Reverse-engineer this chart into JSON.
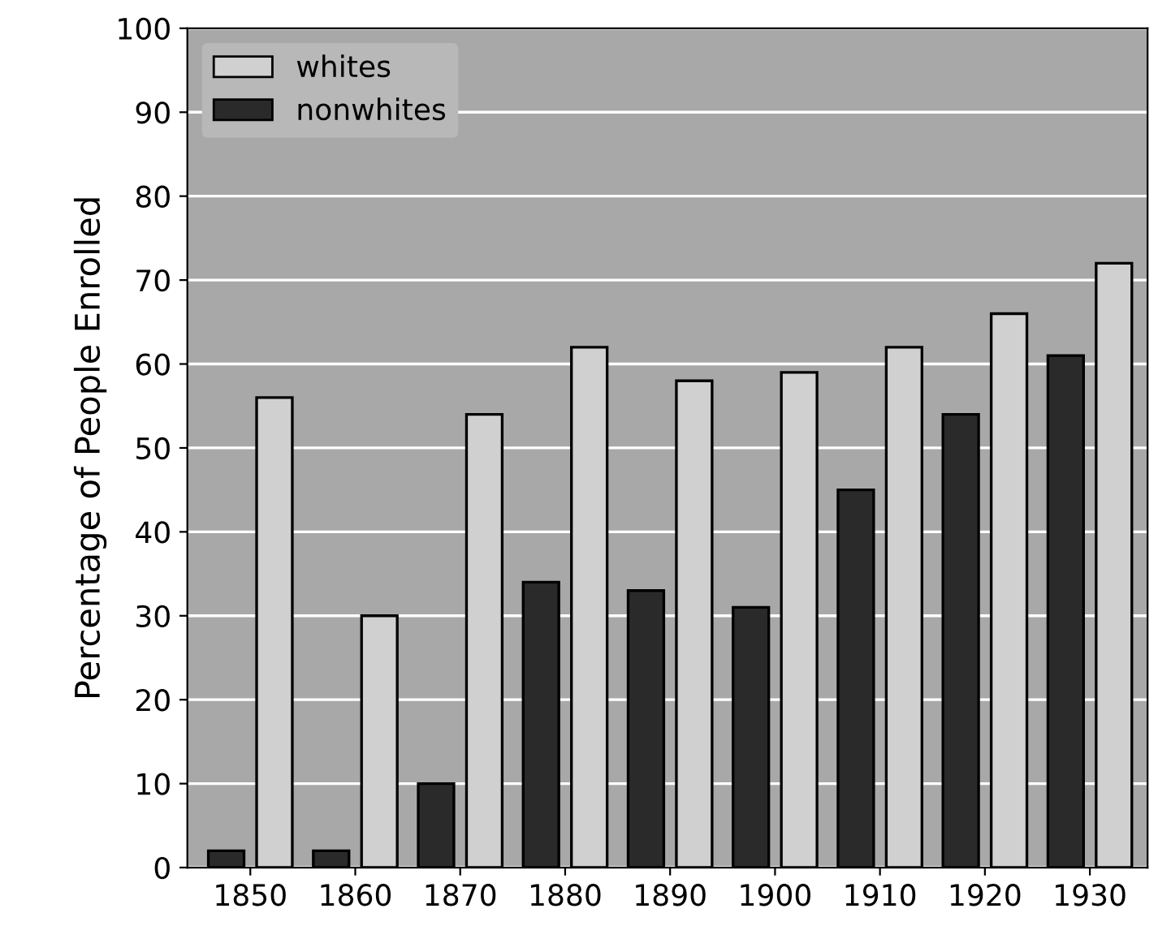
{
  "chart_data": {
    "type": "bar",
    "ylabel": "Percentage of People Enrolled",
    "categories": [
      "1850",
      "1860",
      "1870",
      "1880",
      "1890",
      "1900",
      "1910",
      "1920",
      "1930"
    ],
    "series": [
      {
        "name": "whites",
        "color": "#d0d0d0",
        "values": [
          56,
          30,
          54,
          62,
          58,
          59,
          62,
          66,
          72
        ]
      },
      {
        "name": "nonwhites",
        "color": "#2a2a2a",
        "values": [
          2,
          2,
          10,
          34,
          33,
          31,
          45,
          54,
          61
        ]
      }
    ],
    "ylim": [
      0,
      100
    ],
    "yticks": [
      0,
      10,
      20,
      30,
      40,
      50,
      60,
      70,
      80,
      90,
      100
    ],
    "grid": "y",
    "legend": "top left"
  }
}
